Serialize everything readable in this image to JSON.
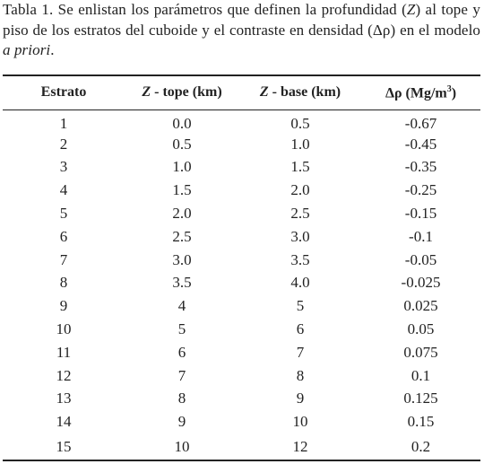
{
  "caption": {
    "parts": [
      {
        "text": "Tabla 1. Se enlistan los parámetros que definen la profundidad (",
        "italic": false
      },
      {
        "text": "Z",
        "italic": true
      },
      {
        "text": ") al tope y piso de los estratos del cuboide y el contraste en densidad  (Δρ) en el modelo ",
        "italic": false
      },
      {
        "text": "a priori",
        "italic": true
      },
      {
        "text": ".",
        "italic": false
      }
    ]
  },
  "table": {
    "headers": [
      {
        "parts": [
          {
            "text": "Estrato",
            "style": "normal"
          }
        ]
      },
      {
        "parts": [
          {
            "text": "Z",
            "style": "italic"
          },
          {
            "text": " - tope (km)",
            "style": "normal"
          }
        ]
      },
      {
        "parts": [
          {
            "text": "Z",
            "style": "italic"
          },
          {
            "text": " - base (km)",
            "style": "normal"
          }
        ]
      },
      {
        "parts": [
          {
            "text": "Δρ (Mg/m",
            "style": "normal"
          },
          {
            "text": "3",
            "style": "sup"
          },
          {
            "text": ")",
            "style": "normal"
          }
        ]
      }
    ],
    "rows": [
      [
        "1",
        "0.0",
        "0.5",
        "-0.67"
      ],
      [
        "2",
        "0.5",
        "1.0",
        "-0.45"
      ],
      [
        "3",
        "1.0",
        "1.5",
        "-0.35"
      ],
      [
        "4",
        "1.5",
        "2.0",
        "-0.25"
      ],
      [
        "5",
        "2.0",
        "2.5",
        "-0.15"
      ],
      [
        "6",
        "2.5",
        "3.0",
        "-0.1"
      ],
      [
        "7",
        "3.0",
        "3.5",
        "-0.05"
      ],
      [
        "8",
        "3.5",
        "4.0",
        "-0.025"
      ],
      [
        "9",
        "4",
        "5",
        "0.025"
      ],
      [
        "10",
        "5",
        "6",
        "0.05"
      ],
      [
        "11",
        "6",
        "7",
        "0.075"
      ],
      [
        "12",
        "7",
        "8",
        "0.1"
      ],
      [
        "13",
        "8",
        "9",
        "0.125"
      ],
      [
        "14",
        "9",
        "10",
        "0.15"
      ],
      [
        "15",
        "10",
        "12",
        "0.2"
      ]
    ]
  }
}
